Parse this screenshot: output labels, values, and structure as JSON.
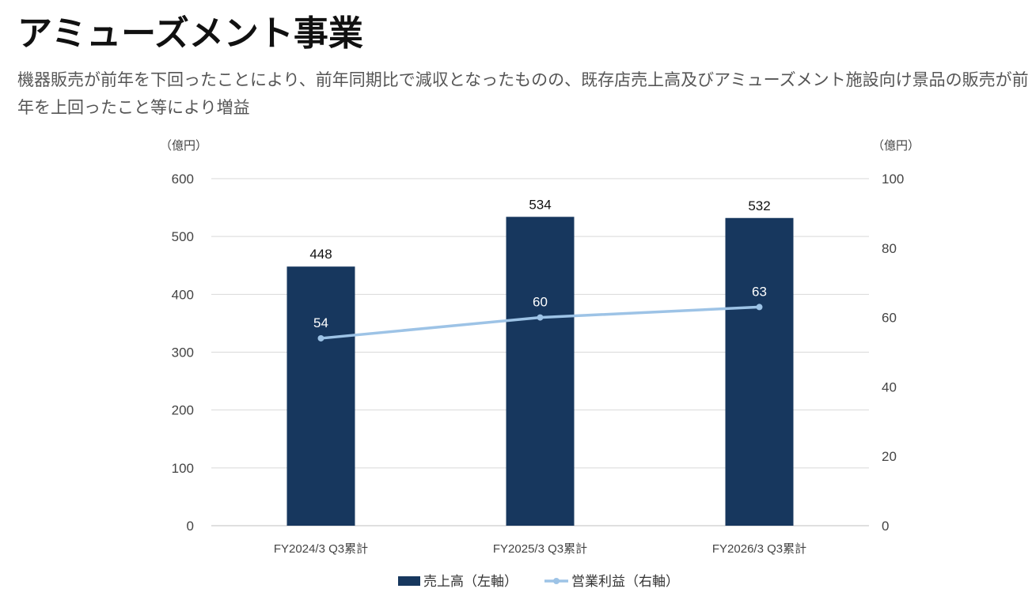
{
  "header": {
    "title": "アミューズメント事業",
    "description": "機器販売が前年を下回ったことにより、前年同期比で減収となったものの、既存店売上高及びアミューズメント施設向け景品の販売が前年を上回ったこと等により増益"
  },
  "chart_data": {
    "type": "bar",
    "categories": [
      "FY2024/3 Q3累計",
      "FY2025/3 Q3累計",
      "FY2026/3 Q3累計"
    ],
    "series": [
      {
        "name": "売上高（左軸）",
        "type": "bar",
        "axis": "left",
        "values": [
          448,
          534,
          532
        ],
        "color": "#17375e"
      },
      {
        "name": "営業利益（右軸）",
        "type": "line",
        "axis": "right",
        "values": [
          54,
          60,
          63
        ],
        "color": "#9dc3e6"
      }
    ],
    "left_axis": {
      "unit": "（億円）",
      "ylim": [
        0,
        600
      ],
      "ticks": [
        0,
        100,
        200,
        300,
        400,
        500,
        600
      ]
    },
    "right_axis": {
      "unit": "（億円）",
      "ylim": [
        0,
        100
      ],
      "ticks": [
        0,
        20,
        40,
        60,
        80,
        100
      ]
    },
    "grid": true,
    "legend_position": "bottom"
  }
}
